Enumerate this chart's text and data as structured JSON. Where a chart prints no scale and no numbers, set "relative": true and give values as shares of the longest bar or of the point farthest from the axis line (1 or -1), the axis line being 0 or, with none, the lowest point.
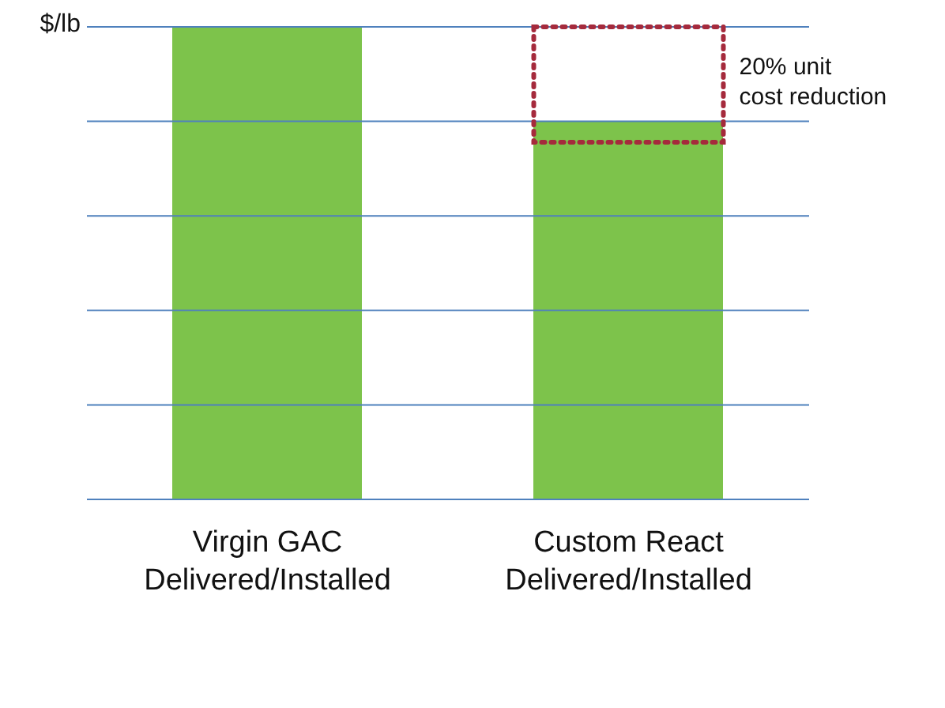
{
  "chart_data": {
    "type": "bar",
    "ylabel": "$/lb",
    "relative": true,
    "categories": [
      "Virgin GAC Delivered/Installed",
      "Custom React Delivered/Installed"
    ],
    "values": [
      1,
      0.8
    ],
    "color": "#7dc34b",
    "ref_lines": [
      {
        "axis": "y",
        "value": 0.2
      },
      {
        "axis": "y",
        "value": 0.4
      },
      {
        "axis": "y",
        "value": 0.6
      },
      {
        "axis": "y",
        "value": 0.8
      },
      {
        "axis": "y",
        "value": 1
      }
    ],
    "annotations": [
      "20% unit cost reduction"
    ]
  }
}
